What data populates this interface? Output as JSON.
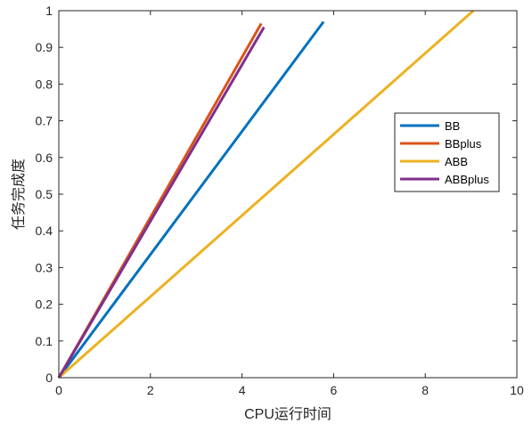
{
  "chart_data": {
    "type": "line",
    "xlabel": "CPU运行时间",
    "ylabel": "任务完成度",
    "xlim": [
      0,
      10
    ],
    "ylim": [
      0,
      1
    ],
    "xticks": [
      0,
      2,
      4,
      6,
      8,
      10
    ],
    "xtick_labels": [
      "0",
      "2",
      "4",
      "6",
      "8",
      "10"
    ],
    "yticks": [
      0,
      0.1,
      0.2,
      0.3,
      0.4,
      0.5,
      0.6,
      0.7,
      0.8,
      0.9,
      1
    ],
    "ytick_labels": [
      "0",
      "0.1",
      "0.2",
      "0.3",
      "0.4",
      "0.5",
      "0.6",
      "0.7",
      "0.8",
      "0.9",
      "1"
    ],
    "grid": false,
    "box": true,
    "legend_position": "right-center",
    "series": [
      {
        "name": "BB",
        "color": "#0072BD",
        "x": [
          0,
          5.78
        ],
        "y": [
          0,
          0.97
        ]
      },
      {
        "name": "BBplus",
        "color": "#D95319",
        "x": [
          0,
          4.42
        ],
        "y": [
          0,
          0.965
        ]
      },
      {
        "name": "ABB",
        "color": "#EDB120",
        "x": [
          0,
          9.05
        ],
        "y": [
          0,
          1.0
        ]
      },
      {
        "name": "ABBplus",
        "color": "#7E2F8E",
        "x": [
          0,
          4.48
        ],
        "y": [
          0,
          0.955
        ]
      }
    ]
  }
}
